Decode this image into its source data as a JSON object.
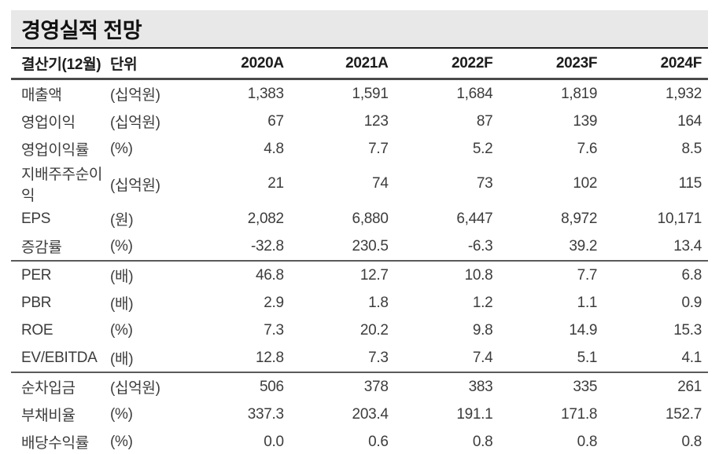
{
  "title": "경영실적 전망",
  "table": {
    "header": {
      "fiscal_label": "결산기(12월)",
      "unit_label": "단위",
      "years": [
        "2020A",
        "2021A",
        "2022F",
        "2023F",
        "2024F"
      ]
    },
    "sections": [
      {
        "rows": [
          {
            "label": "매출액",
            "unit": "(십억원)",
            "values": [
              "1,383",
              "1,591",
              "1,684",
              "1,819",
              "1,932"
            ]
          },
          {
            "label": "영업이익",
            "unit": "(십억원)",
            "values": [
              "67",
              "123",
              "87",
              "139",
              "164"
            ]
          },
          {
            "label": "영업이익률",
            "unit": "(%)",
            "values": [
              "4.8",
              "7.7",
              "5.2",
              "7.6",
              "8.5"
            ]
          },
          {
            "label": "지배주주순이익",
            "unit": "(십억원)",
            "values": [
              "21",
              "74",
              "73",
              "102",
              "115"
            ]
          },
          {
            "label": "EPS",
            "unit": "(원)",
            "values": [
              "2,082",
              "6,880",
              "6,447",
              "8,972",
              "10,171"
            ]
          },
          {
            "label": "증감률",
            "unit": "(%)",
            "values": [
              "-32.8",
              "230.5",
              "-6.3",
              "39.2",
              "13.4"
            ]
          }
        ]
      },
      {
        "rows": [
          {
            "label": "PER",
            "unit": "(배)",
            "values": [
              "46.8",
              "12.7",
              "10.8",
              "7.7",
              "6.8"
            ]
          },
          {
            "label": "PBR",
            "unit": "(배)",
            "values": [
              "2.9",
              "1.8",
              "1.2",
              "1.1",
              "0.9"
            ]
          },
          {
            "label": "ROE",
            "unit": "(%)",
            "values": [
              "7.3",
              "20.2",
              "9.8",
              "14.9",
              "15.3"
            ]
          },
          {
            "label": "EV/EBITDA",
            "unit": "(배)",
            "values": [
              "12.8",
              "7.3",
              "7.4",
              "5.1",
              "4.1"
            ]
          }
        ]
      },
      {
        "rows": [
          {
            "label": "순차입금",
            "unit": "(십억원)",
            "values": [
              "506",
              "378",
              "383",
              "335",
              "261"
            ]
          },
          {
            "label": "부채비율",
            "unit": "(%)",
            "values": [
              "337.3",
              "203.4",
              "191.1",
              "171.8",
              "152.7"
            ]
          },
          {
            "label": "배당수익률",
            "unit": "(%)",
            "values": [
              "0.0",
              "0.6",
              "0.8",
              "0.8",
              "0.8"
            ]
          }
        ]
      }
    ]
  },
  "colors": {
    "title_background": "#e8e8e8",
    "title_underline": "#1a1a1a",
    "section_rule": "#5a5a5a",
    "body_text": "#3c3c3c",
    "header_text": "#1c1c1c"
  }
}
